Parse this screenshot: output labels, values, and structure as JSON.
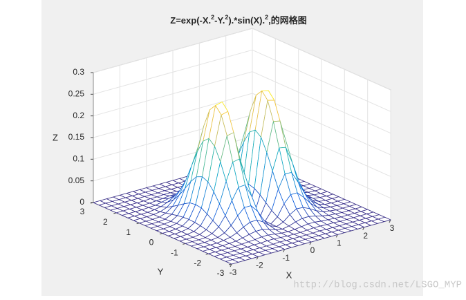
{
  "chart_data": {
    "type": "mesh",
    "title": [
      "Z=exp(-X.",
      "2",
      "-Y.",
      "2",
      ").*sin(X).",
      "2",
      ",的网格图"
    ],
    "xlabel": "X",
    "ylabel": "Y",
    "zlabel": "Z",
    "x": [
      -3,
      -2.75,
      -2.5,
      -2.25,
      -2,
      -1.75,
      -1.5,
      -1.25,
      -1,
      -0.75,
      -0.5,
      -0.25,
      0,
      0.25,
      0.5,
      0.75,
      1,
      1.25,
      1.5,
      1.75,
      2,
      2.25,
      2.5,
      2.75,
      3
    ],
    "y": [
      -3,
      -2.75,
      -2.5,
      -2.25,
      -2,
      -1.75,
      -1.5,
      -1.25,
      -1,
      -0.75,
      -0.5,
      -0.25,
      0,
      0.25,
      0.5,
      0.75,
      1,
      1.25,
      1.5,
      1.75,
      2,
      2.25,
      2.5,
      2.75,
      3
    ],
    "z": [
      [
        0,
        0,
        0,
        0,
        0,
        0,
        0,
        0,
        0,
        0,
        0,
        0,
        0,
        0,
        0,
        0,
        0,
        0,
        0,
        0,
        0,
        0,
        0,
        0,
        0
      ],
      [
        0,
        0,
        0,
        0,
        0,
        0,
        0,
        0,
        0,
        0,
        0,
        0,
        0,
        0,
        0,
        0,
        0,
        0,
        0,
        0,
        0,
        0,
        0,
        0,
        0
      ],
      [
        0,
        0,
        0,
        0,
        0,
        0,
        0,
        0,
        0,
        0.001,
        0,
        0,
        0,
        0,
        0,
        0.001,
        0,
        0,
        0,
        0,
        0,
        0,
        0,
        0,
        0
      ],
      [
        0,
        0,
        0,
        0,
        0,
        0,
        0.001,
        0.001,
        0.002,
        0.002,
        0.001,
        0,
        0,
        0,
        0.001,
        0.002,
        0.002,
        0.001,
        0.001,
        0,
        0,
        0,
        0,
        0,
        0
      ],
      [
        0,
        0,
        0,
        0,
        0,
        0.001,
        0.002,
        0.003,
        0.005,
        0.005,
        0.003,
        0.001,
        0,
        0.001,
        0.003,
        0.005,
        0.005,
        0.003,
        0.002,
        0.001,
        0,
        0,
        0,
        0,
        0
      ],
      [
        0,
        0,
        0,
        0,
        0.001,
        0.002,
        0.005,
        0.009,
        0.012,
        0.012,
        0.008,
        0.003,
        0,
        0.003,
        0.008,
        0.012,
        0.012,
        0.009,
        0.005,
        0.002,
        0.001,
        0,
        0,
        0,
        0
      ],
      [
        0,
        0,
        0,
        0,
        0.002,
        0.005,
        0.011,
        0.02,
        0.027,
        0.028,
        0.019,
        0.006,
        0,
        0.006,
        0.019,
        0.028,
        0.027,
        0.02,
        0.011,
        0.005,
        0.002,
        0,
        0,
        0,
        0
      ],
      [
        0,
        0,
        0,
        0.001,
        0.003,
        0.009,
        0.022,
        0.04,
        0.055,
        0.055,
        0.038,
        0.012,
        0,
        0.012,
        0.038,
        0.055,
        0.055,
        0.04,
        0.022,
        0.009,
        0.003,
        0.001,
        0,
        0,
        0
      ],
      [
        0,
        0,
        0,
        0.001,
        0.006,
        0.017,
        0.039,
        0.069,
        0.096,
        0.097,
        0.066,
        0.021,
        0,
        0.021,
        0.066,
        0.097,
        0.096,
        0.069,
        0.039,
        0.017,
        0.006,
        0.001,
        0,
        0,
        0
      ],
      [
        0,
        0,
        0,
        0.002,
        0.009,
        0.026,
        0.06,
        0.108,
        0.148,
        0.151,
        0.102,
        0.033,
        0,
        0.033,
        0.102,
        0.151,
        0.148,
        0.108,
        0.06,
        0.026,
        0.009,
        0.002,
        0,
        0,
        0
      ],
      [
        0,
        0,
        0.001,
        0.003,
        0.012,
        0.035,
        0.082,
        0.147,
        0.203,
        0.206,
        0.139,
        0.045,
        0,
        0.045,
        0.139,
        0.206,
        0.203,
        0.147,
        0.082,
        0.035,
        0.012,
        0.003,
        0.001,
        0,
        0
      ],
      [
        0,
        0,
        0.001,
        0.004,
        0.014,
        0.043,
        0.099,
        0.177,
        0.245,
        0.249,
        0.168,
        0.054,
        0,
        0.054,
        0.168,
        0.249,
        0.245,
        0.177,
        0.099,
        0.043,
        0.014,
        0.004,
        0.001,
        0,
        0
      ],
      [
        0,
        0,
        0.001,
        0.004,
        0.015,
        0.045,
        0.105,
        0.189,
        0.261,
        0.265,
        0.179,
        0.058,
        0,
        0.058,
        0.179,
        0.265,
        0.261,
        0.189,
        0.105,
        0.045,
        0.015,
        0.004,
        0.001,
        0,
        0
      ],
      [
        0,
        0,
        0.001,
        0.004,
        0.014,
        0.043,
        0.099,
        0.177,
        0.245,
        0.249,
        0.168,
        0.054,
        0,
        0.054,
        0.168,
        0.249,
        0.245,
        0.177,
        0.099,
        0.043,
        0.014,
        0.004,
        0.001,
        0,
        0
      ],
      [
        0,
        0,
        0.001,
        0.003,
        0.012,
        0.035,
        0.082,
        0.147,
        0.203,
        0.206,
        0.139,
        0.045,
        0,
        0.045,
        0.139,
        0.206,
        0.203,
        0.147,
        0.082,
        0.035,
        0.012,
        0.003,
        0.001,
        0,
        0
      ],
      [
        0,
        0,
        0,
        0.002,
        0.009,
        0.026,
        0.06,
        0.108,
        0.148,
        0.151,
        0.102,
        0.033,
        0,
        0.033,
        0.102,
        0.151,
        0.148,
        0.108,
        0.06,
        0.026,
        0.009,
        0.002,
        0,
        0,
        0
      ],
      [
        0,
        0,
        0,
        0.001,
        0.006,
        0.017,
        0.039,
        0.069,
        0.096,
        0.097,
        0.066,
        0.021,
        0,
        0.021,
        0.066,
        0.097,
        0.096,
        0.069,
        0.039,
        0.017,
        0.006,
        0.001,
        0,
        0,
        0
      ],
      [
        0,
        0,
        0,
        0.001,
        0.003,
        0.009,
        0.022,
        0.04,
        0.055,
        0.055,
        0.038,
        0.012,
        0,
        0.012,
        0.038,
        0.055,
        0.055,
        0.04,
        0.022,
        0.009,
        0.003,
        0.001,
        0,
        0,
        0
      ],
      [
        0,
        0,
        0,
        0,
        0.002,
        0.005,
        0.011,
        0.02,
        0.027,
        0.028,
        0.019,
        0.006,
        0,
        0.006,
        0.019,
        0.028,
        0.027,
        0.02,
        0.011,
        0.005,
        0.002,
        0,
        0,
        0,
        0
      ],
      [
        0,
        0,
        0,
        0,
        0.001,
        0.002,
        0.005,
        0.009,
        0.012,
        0.012,
        0.008,
        0.003,
        0,
        0.003,
        0.008,
        0.012,
        0.012,
        0.009,
        0.005,
        0.002,
        0.001,
        0,
        0,
        0,
        0
      ],
      [
        0,
        0,
        0,
        0,
        0,
        0.001,
        0.002,
        0.003,
        0.005,
        0.005,
        0.003,
        0.001,
        0,
        0.001,
        0.003,
        0.005,
        0.005,
        0.003,
        0.002,
        0.001,
        0,
        0,
        0,
        0,
        0
      ],
      [
        0,
        0,
        0,
        0,
        0,
        0,
        0.001,
        0.001,
        0.002,
        0.002,
        0.001,
        0,
        0,
        0,
        0.001,
        0.002,
        0.002,
        0.001,
        0.001,
        0,
        0,
        0,
        0,
        0,
        0
      ],
      [
        0,
        0,
        0,
        0,
        0,
        0,
        0,
        0,
        0,
        0.001,
        0,
        0,
        0,
        0,
        0,
        0.001,
        0,
        0,
        0,
        0,
        0,
        0,
        0,
        0,
        0
      ],
      [
        0,
        0,
        0,
        0,
        0,
        0,
        0,
        0,
        0,
        0,
        0,
        0,
        0,
        0,
        0,
        0,
        0,
        0,
        0,
        0,
        0,
        0,
        0,
        0,
        0
      ],
      [
        0,
        0,
        0,
        0,
        0,
        0,
        0,
        0,
        0,
        0,
        0,
        0,
        0,
        0,
        0,
        0,
        0,
        0,
        0,
        0,
        0,
        0,
        0,
        0,
        0
      ]
    ],
    "xlim": [
      -3,
      3
    ],
    "ylim": [
      -3,
      3
    ],
    "zlim": [
      0,
      0.3
    ],
    "xticks": [
      -3,
      -2,
      -1,
      0,
      1,
      2,
      3
    ],
    "yticks": [
      -3,
      -2,
      -1,
      0,
      1,
      2,
      3
    ],
    "zticks": [
      0,
      0.05,
      0.1,
      0.15,
      0.2,
      0.25,
      0.3
    ],
    "grid": true,
    "colormap": [
      "#352a87",
      "#0f5cdd",
      "#1481d6",
      "#06a4ca",
      "#2eb7a4",
      "#87bf77",
      "#d1bb59",
      "#fec832",
      "#f9fb0e"
    ]
  },
  "watermark": "http://blog.csdn.net/LSGO_MYP"
}
